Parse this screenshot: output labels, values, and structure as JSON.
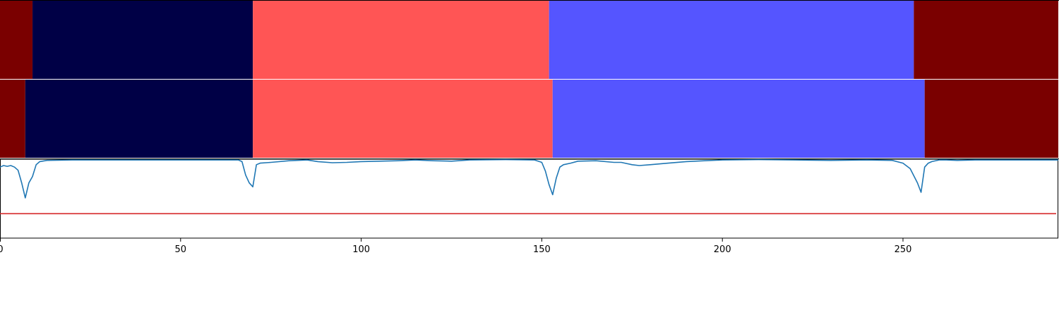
{
  "chart_data": {
    "type": "segmentation-timeline",
    "xlim": [
      0,
      293
    ],
    "x_ticks": [
      0,
      50,
      100,
      150,
      200,
      250
    ],
    "x_tick_labels": [
      "0",
      "50",
      "100",
      "150",
      "200",
      "250"
    ],
    "grid": false,
    "colors": {
      "dark_red": "#7a0000",
      "navy": "#000046",
      "salmon": "#ff5555",
      "periwinkle": "#5555ff",
      "line": "#1f77b4",
      "threshold": "#d62728"
    },
    "rows": [
      {
        "segments": [
          {
            "start": 0,
            "end": 9,
            "color": "#7a0000"
          },
          {
            "start": 9,
            "end": 70,
            "color": "#000046"
          },
          {
            "start": 70,
            "end": 152,
            "color": "#ff5555"
          },
          {
            "start": 152,
            "end": 253,
            "color": "#5555ff"
          },
          {
            "start": 253,
            "end": 293,
            "color": "#7a0000"
          }
        ]
      },
      {
        "segments": [
          {
            "start": 0,
            "end": 7,
            "color": "#7a0000"
          },
          {
            "start": 7,
            "end": 70,
            "color": "#000046"
          },
          {
            "start": 70,
            "end": 153,
            "color": "#ff5555"
          },
          {
            "start": 153,
            "end": 256,
            "color": "#5555ff"
          },
          {
            "start": 256,
            "end": 293,
            "color": "#7a0000"
          }
        ]
      }
    ],
    "signal": {
      "ylim": [
        0,
        1
      ],
      "threshold": 0.31,
      "points": [
        [
          0,
          0.9
        ],
        [
          1,
          0.92
        ],
        [
          2,
          0.91
        ],
        [
          3,
          0.92
        ],
        [
          4,
          0.9
        ],
        [
          5,
          0.86
        ],
        [
          6,
          0.7
        ],
        [
          7,
          0.51
        ],
        [
          8,
          0.7
        ],
        [
          9,
          0.78
        ],
        [
          10,
          0.93
        ],
        [
          11,
          0.97
        ],
        [
          13,
          0.985
        ],
        [
          20,
          0.99
        ],
        [
          40,
          0.99
        ],
        [
          60,
          0.99
        ],
        [
          66,
          0.99
        ],
        [
          67,
          0.97
        ],
        [
          68,
          0.8
        ],
        [
          69,
          0.7
        ],
        [
          70,
          0.65
        ],
        [
          71,
          0.93
        ],
        [
          72,
          0.95
        ],
        [
          75,
          0.96
        ],
        [
          80,
          0.98
        ],
        [
          85,
          0.99
        ],
        [
          88,
          0.97
        ],
        [
          92,
          0.955
        ],
        [
          96,
          0.96
        ],
        [
          100,
          0.97
        ],
        [
          105,
          0.975
        ],
        [
          110,
          0.98
        ],
        [
          115,
          0.99
        ],
        [
          120,
          0.98
        ],
        [
          125,
          0.975
        ],
        [
          130,
          0.99
        ],
        [
          140,
          0.995
        ],
        [
          148,
          0.99
        ],
        [
          150,
          0.96
        ],
        [
          151,
          0.85
        ],
        [
          152,
          0.68
        ],
        [
          153,
          0.55
        ],
        [
          154,
          0.76
        ],
        [
          155,
          0.9
        ],
        [
          156,
          0.93
        ],
        [
          158,
          0.95
        ],
        [
          160,
          0.975
        ],
        [
          165,
          0.98
        ],
        [
          170,
          0.96
        ],
        [
          172,
          0.96
        ],
        [
          175,
          0.93
        ],
        [
          177,
          0.92
        ],
        [
          180,
          0.93
        ],
        [
          185,
          0.95
        ],
        [
          190,
          0.97
        ],
        [
          195,
          0.98
        ],
        [
          200,
          0.99
        ],
        [
          210,
          0.995
        ],
        [
          220,
          0.99
        ],
        [
          230,
          0.985
        ],
        [
          240,
          0.99
        ],
        [
          247,
          0.985
        ],
        [
          250,
          0.95
        ],
        [
          252,
          0.88
        ],
        [
          254,
          0.7
        ],
        [
          255,
          0.58
        ],
        [
          256,
          0.9
        ],
        [
          257,
          0.95
        ],
        [
          258,
          0.97
        ],
        [
          260,
          0.99
        ],
        [
          262,
          0.99
        ],
        [
          265,
          0.985
        ],
        [
          270,
          0.99
        ],
        [
          280,
          0.99
        ],
        [
          290,
          0.99
        ],
        [
          293,
          0.99
        ]
      ]
    }
  }
}
